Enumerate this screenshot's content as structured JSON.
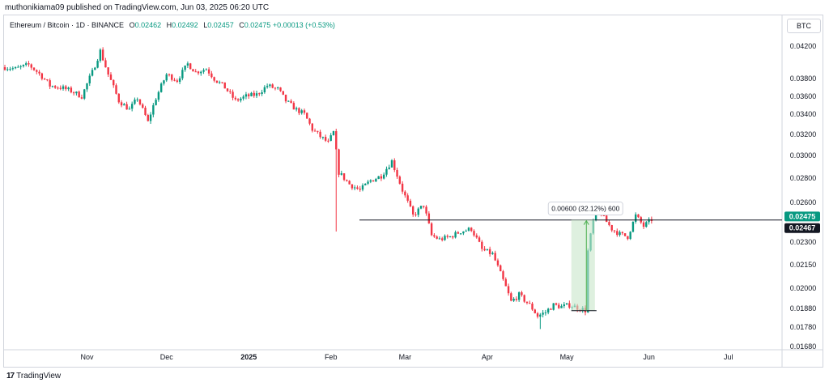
{
  "header": {
    "byline": "muthonikiama09 published on TradingView.com, Jun 03, 2025 06:20 UTC"
  },
  "legend": {
    "symbol": "Ethereum / Bitcoin · 1D · BINANCE",
    "o_label": "O",
    "o_value": "0.02462",
    "h_label": "H",
    "h_value": "0.02492",
    "l_label": "L",
    "l_value": "0.02457",
    "c_label": "C",
    "c_value": "0.02475",
    "change": "+0.00013 (+0.53%)"
  },
  "price_scale": {
    "currency": "BTC"
  },
  "footer": {
    "brand": "TradingView",
    "logo_text": "17"
  },
  "colors": {
    "up": "#089981",
    "down": "#f23645",
    "measure_fill": "#c8e6c9",
    "measure_stroke": "#4caf50"
  },
  "chart_data": {
    "type": "candlestick",
    "interval": "1D",
    "x_tick_labels": [
      "Nov",
      "Dec",
      "2025",
      "Feb",
      "Mar",
      "Apr",
      "May",
      "Jun",
      "Jul"
    ],
    "y_tick_labels": [
      "0.04200",
      "0.03800",
      "0.03600",
      "0.03400",
      "0.03200",
      "0.03000",
      "0.02800",
      "0.02600",
      "0.02300",
      "0.02150",
      "0.02000",
      "0.01880",
      "0.01780",
      "0.01680"
    ],
    "y_tick_values": [
      0.042,
      0.038,
      0.036,
      0.034,
      0.032,
      0.03,
      0.028,
      0.026,
      0.023,
      0.0215,
      0.02,
      0.0188,
      0.0178,
      0.0168
    ],
    "x_date_range": [
      "2024-10-01",
      "2025-07-20"
    ],
    "last_price_label": "0.02475",
    "price_line_label": "0.02467",
    "price_line_value": 0.02467,
    "measure": {
      "label": "0.00600 (32.12%) 600",
      "from_date": "2025-05-07",
      "to_date": "2025-05-11",
      "low": 0.01868,
      "high": 0.02468
    },
    "path": [
      [
        "2024-10-01",
        0.0394
      ],
      [
        "2024-10-05",
        0.0392
      ],
      [
        "2024-10-10",
        0.0397
      ],
      [
        "2024-10-14",
        0.0386
      ],
      [
        "2024-10-18",
        0.0372
      ],
      [
        "2024-10-22",
        0.037
      ],
      [
        "2024-10-26",
        0.0366
      ],
      [
        "2024-10-30",
        0.036
      ],
      [
        "2024-11-03",
        0.0388
      ],
      [
        "2024-11-06",
        0.0414
      ],
      [
        "2024-11-09",
        0.0385
      ],
      [
        "2024-11-13",
        0.0355
      ],
      [
        "2024-11-17",
        0.0345
      ],
      [
        "2024-11-20",
        0.0358
      ],
      [
        "2024-11-24",
        0.0332
      ],
      [
        "2024-11-27",
        0.0358
      ],
      [
        "2024-12-01",
        0.0385
      ],
      [
        "2024-12-05",
        0.0378
      ],
      [
        "2024-12-09",
        0.0398
      ],
      [
        "2024-12-12",
        0.0388
      ],
      [
        "2024-12-16",
        0.0392
      ],
      [
        "2024-12-19",
        0.038
      ],
      [
        "2024-12-23",
        0.037
      ],
      [
        "2024-12-27",
        0.0355
      ],
      [
        "2024-12-31",
        0.036
      ],
      [
        "2025-01-04",
        0.0362
      ],
      [
        "2025-01-08",
        0.0372
      ],
      [
        "2025-01-12",
        0.0368
      ],
      [
        "2025-01-15",
        0.0355
      ],
      [
        "2025-01-19",
        0.0345
      ],
      [
        "2025-01-22",
        0.034
      ],
      [
        "2025-01-25",
        0.0325
      ],
      [
        "2025-01-28",
        0.0318
      ],
      [
        "2025-01-31",
        0.0312
      ],
      [
        "2025-02-02",
        0.0322
      ],
      [
        "2025-02-04",
        0.0285
      ],
      [
        "2025-02-08",
        0.0275
      ],
      [
        "2025-02-12",
        0.027
      ],
      [
        "2025-02-16",
        0.0278
      ],
      [
        "2025-02-20",
        0.0282
      ],
      [
        "2025-02-24",
        0.0295
      ],
      [
        "2025-02-28",
        0.027
      ],
      [
        "2025-03-04",
        0.025
      ],
      [
        "2025-03-08",
        0.0258
      ],
      [
        "2025-03-11",
        0.0235
      ],
      [
        "2025-03-14",
        0.0232
      ],
      [
        "2025-03-18",
        0.0234
      ],
      [
        "2025-03-22",
        0.0238
      ],
      [
        "2025-03-26",
        0.024
      ],
      [
        "2025-03-30",
        0.0225
      ],
      [
        "2025-04-03",
        0.0222
      ],
      [
        "2025-04-07",
        0.0205
      ],
      [
        "2025-04-10",
        0.0192
      ],
      [
        "2025-04-13",
        0.0196
      ],
      [
        "2025-04-17",
        0.019
      ],
      [
        "2025-04-20",
        0.0184
      ],
      [
        "2025-04-23",
        0.0186
      ],
      [
        "2025-04-26",
        0.019
      ],
      [
        "2025-04-29",
        0.0189
      ],
      [
        "2025-05-02",
        0.019
      ],
      [
        "2025-05-06",
        0.0188
      ],
      [
        "2025-05-08",
        0.0187
      ],
      [
        "2025-05-09",
        0.0224
      ],
      [
        "2025-05-11",
        0.0246
      ],
      [
        "2025-05-13",
        0.0255
      ],
      [
        "2025-05-15",
        0.0248
      ],
      [
        "2025-05-18",
        0.024
      ],
      [
        "2025-05-21",
        0.0236
      ],
      [
        "2025-05-24",
        0.0234
      ],
      [
        "2025-05-27",
        0.025
      ],
      [
        "2025-05-30",
        0.0242
      ],
      [
        "2025-06-02",
        0.0247
      ]
    ]
  }
}
